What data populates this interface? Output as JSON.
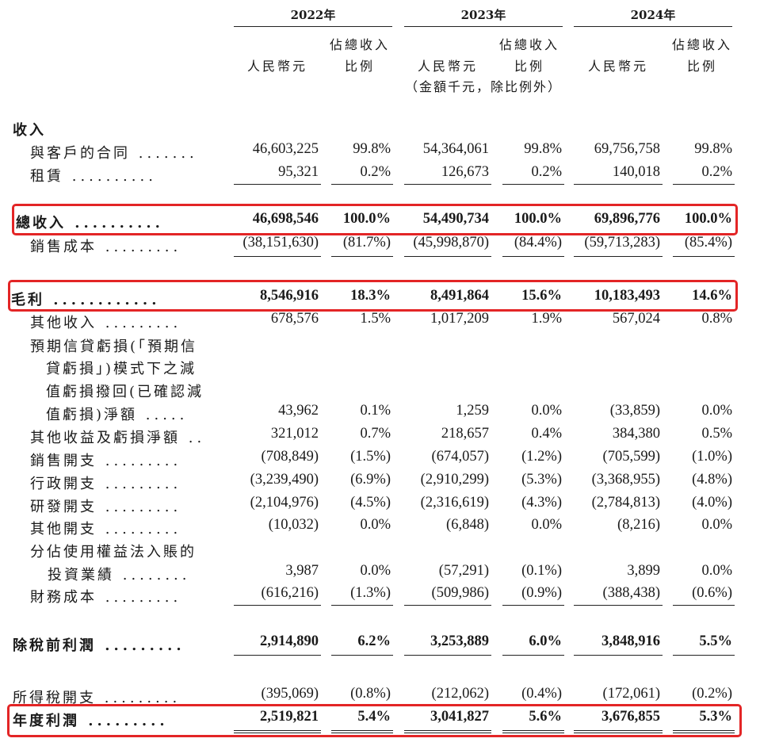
{
  "header": {
    "years": [
      "2022年",
      "2023年",
      "2024年"
    ],
    "rmb_label": "人民幣元",
    "ratio_label_line1": "佔總收入",
    "ratio_label_line2": "比例",
    "units_note": "（金額千元，除比例外）"
  },
  "rows": [
    {
      "label": "收入",
      "dots": "",
      "values": []
    },
    {
      "label": "與客戶的合同",
      "dots": ".......",
      "values": [
        "46,603,225",
        "99.8%",
        "54,364,061",
        "99.8%",
        "69,756,758",
        "99.8%"
      ]
    },
    {
      "label": "租賃",
      "dots": "..........",
      "values": [
        "95,321",
        "0.2%",
        "126,673",
        "0.2%",
        "140,018",
        "0.2%"
      ]
    },
    {
      "label": "總收入",
      "dots": "..........",
      "values": [
        "46,698,546",
        "100.0%",
        "54,490,734",
        "100.0%",
        "69,896,776",
        "100.0%"
      ]
    },
    {
      "label": "銷售成本",
      "dots": ".........",
      "values": [
        "(38,151,630)",
        "(81.7%)",
        "(45,998,870)",
        "(84.4%)",
        "(59,713,283)",
        "(85.4%)"
      ]
    },
    {
      "label": "毛利",
      "dots": "............",
      "values": [
        "8,546,916",
        "18.3%",
        "8,491,864",
        "15.6%",
        "10,183,493",
        "14.6%"
      ]
    },
    {
      "label": "其他收入",
      "dots": ".........",
      "values": [
        "678,576",
        "1.5%",
        "1,017,209",
        "1.9%",
        "567,024",
        "0.8%"
      ]
    },
    {
      "label": "預期信貸虧損(「預期信",
      "dots": "",
      "values": []
    },
    {
      "label": "貸虧損」)模式下之減",
      "dots": "",
      "values": []
    },
    {
      "label": "值虧損撥回(已確認減",
      "dots": "",
      "values": []
    },
    {
      "label": "值虧損)淨額",
      "dots": ".....",
      "values": [
        "43,962",
        "0.1%",
        "1,259",
        "0.0%",
        "(33,859)",
        "0.0%"
      ]
    },
    {
      "label": "其他收益及虧損淨額",
      "dots": "..",
      "values": [
        "321,012",
        "0.7%",
        "218,657",
        "0.4%",
        "384,380",
        "0.5%"
      ]
    },
    {
      "label": "銷售開支",
      "dots": ".........",
      "values": [
        "(708,849)",
        "(1.5%)",
        "(674,057)",
        "(1.2%)",
        "(705,599)",
        "(1.0%)"
      ]
    },
    {
      "label": "行政開支",
      "dots": ".........",
      "values": [
        "(3,239,490)",
        "(6.9%)",
        "(2,910,299)",
        "(5.3%)",
        "(3,368,955)",
        "(4.8%)"
      ]
    },
    {
      "label": "研發開支",
      "dots": ".........",
      "values": [
        "(2,104,976)",
        "(4.5%)",
        "(2,316,619)",
        "(4.3%)",
        "(2,784,813)",
        "(4.0%)"
      ]
    },
    {
      "label": "其他開支",
      "dots": ".........",
      "values": [
        "(10,032)",
        "0.0%",
        "(6,848)",
        "0.0%",
        "(8,216)",
        "0.0%"
      ]
    },
    {
      "label": "分佔使用權益法入賬的",
      "dots": "",
      "values": []
    },
    {
      "label": "投資業績",
      "dots": "........",
      "values": [
        "3,987",
        "0.0%",
        "(57,291)",
        "(0.1%)",
        "3,899",
        "0.0%"
      ]
    },
    {
      "label": "財務成本",
      "dots": ".........",
      "values": [
        "(616,216)",
        "(1.3%)",
        "(509,986)",
        "(0.9%)",
        "(388,438)",
        "(0.6%)"
      ]
    },
    {
      "label": "除稅前利潤",
      "dots": ".........",
      "values": [
        "2,914,890",
        "6.2%",
        "3,253,889",
        "6.0%",
        "3,848,916",
        "5.5%"
      ]
    },
    {
      "label": "所得稅開支",
      "dots": ".........",
      "values": [
        "(395,069)",
        "(0.8%)",
        "(212,062)",
        "(0.4%)",
        "(172,061)",
        "(0.2%)"
      ]
    },
    {
      "label": "年度利潤",
      "dots": ".........",
      "values": [
        "2,519,821",
        "5.4%",
        "3,041,827",
        "5.6%",
        "3,676,855",
        "5.3%"
      ]
    }
  ],
  "colors": {
    "highlight_box": "#e32526",
    "text": "#1a1a1a"
  }
}
